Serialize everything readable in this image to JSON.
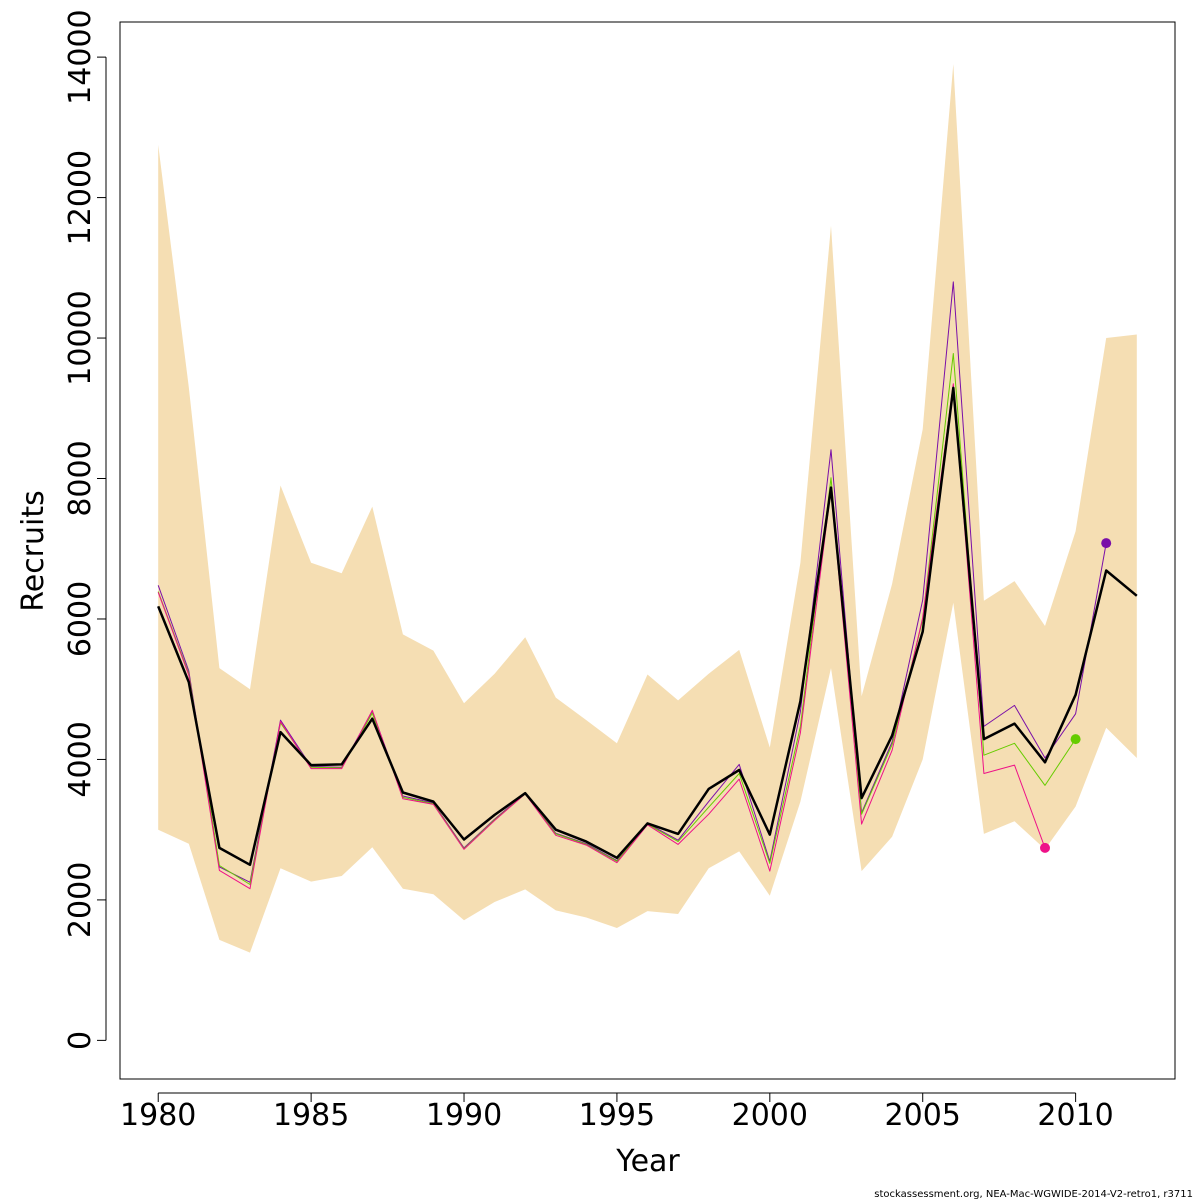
{
  "chart_data": {
    "type": "line",
    "xlabel": "Year",
    "ylabel": "Recruits",
    "xlim": [
      1978.75,
      2013.25
    ],
    "ylim": [
      -550,
      14500
    ],
    "x_ticks": [
      1980,
      1985,
      1990,
      1995,
      2000,
      2005,
      2010
    ],
    "y_ticks": [
      0,
      2000,
      4000,
      6000,
      8000,
      10000,
      12000,
      14000
    ],
    "grid": false,
    "legend": "none",
    "years": [
      1980,
      1981,
      1982,
      1983,
      1984,
      1985,
      1986,
      1987,
      1988,
      1989,
      1990,
      1991,
      1992,
      1993,
      1994,
      1995,
      1996,
      1997,
      1998,
      1999,
      2000,
      2001,
      2002,
      2003,
      2004,
      2005,
      2006,
      2007,
      2008,
      2009,
      2010,
      2011,
      2012
    ],
    "confidence_band": {
      "color": "#F5DEB3",
      "upper": [
        12750,
        9300,
        5300,
        5000,
        7900,
        6800,
        6650,
        7600,
        5780,
        5550,
        4800,
        5220,
        5740,
        4880,
        4560,
        4230,
        5210,
        4840,
        5220,
        5560,
        4170,
        6800,
        11600,
        4900,
        6500,
        8700,
        13900,
        6260,
        6540,
        5900,
        7250,
        10000,
        10050
      ],
      "lower": [
        3000,
        2800,
        1430,
        1250,
        2450,
        2260,
        2340,
        2750,
        2160,
        2080,
        1710,
        1970,
        2150,
        1850,
        1750,
        1600,
        1840,
        1800,
        2450,
        2690,
        2060,
        3400,
        5300,
        2410,
        2900,
        4000,
        6230,
        2940,
        3120,
        2720,
        3330,
        4450,
        4020
      ]
    },
    "series": [
      {
        "color": "#000000",
        "width": 2.5,
        "values": [
          6180,
          5100,
          2740,
          2500,
          4390,
          3920,
          3930,
          4580,
          3530,
          3400,
          2860,
          3210,
          3520,
          3000,
          2830,
          2600,
          3090,
          2940,
          3580,
          3850,
          2930,
          4830,
          7870,
          3450,
          4340,
          5820,
          9290,
          4290,
          4510,
          3960,
          4920,
          6690,
          6330
        ]
      },
      {
        "color": "#7A0FA8",
        "width": 1,
        "values": [
          6480,
          5260,
          2470,
          2250,
          4560,
          3900,
          3890,
          4690,
          3480,
          3380,
          2740,
          3150,
          3520,
          2950,
          2800,
          2560,
          3090,
          2850,
          3400,
          3930,
          2550,
          4680,
          8410,
          3240,
          4250,
          6270,
          10800,
          4470,
          4770,
          4020,
          4650,
          7080,
          null
        ],
        "endpoint": {
          "year": 2011,
          "value": 7080
        }
      },
      {
        "color": "#66CC00",
        "width": 1,
        "values": [
          6390,
          5220,
          2490,
          2220,
          4520,
          3890,
          3880,
          4660,
          3460,
          3370,
          2730,
          3140,
          3510,
          2940,
          2790,
          2550,
          3080,
          2830,
          3320,
          3800,
          2520,
          4470,
          8010,
          3220,
          4210,
          5990,
          9780,
          4060,
          4230,
          3630,
          4290,
          null,
          null
        ],
        "endpoint": {
          "year": 2010,
          "value": 4290
        }
      },
      {
        "color": "#EE1188",
        "width": 1,
        "values": [
          6380,
          5200,
          2420,
          2160,
          4540,
          3870,
          3870,
          4700,
          3440,
          3360,
          2720,
          3130,
          3510,
          2920,
          2780,
          2530,
          3070,
          2790,
          3220,
          3720,
          2410,
          4380,
          7850,
          3080,
          4130,
          6020,
          9350,
          3800,
          3920,
          2740,
          null,
          null,
          null
        ],
        "endpoint": {
          "year": 2009,
          "value": 2740
        }
      }
    ]
  },
  "footer": {
    "credit": "stockassessment.org, NEA-Mac-WGWIDE-2014-V2-retro1, r3711"
  }
}
